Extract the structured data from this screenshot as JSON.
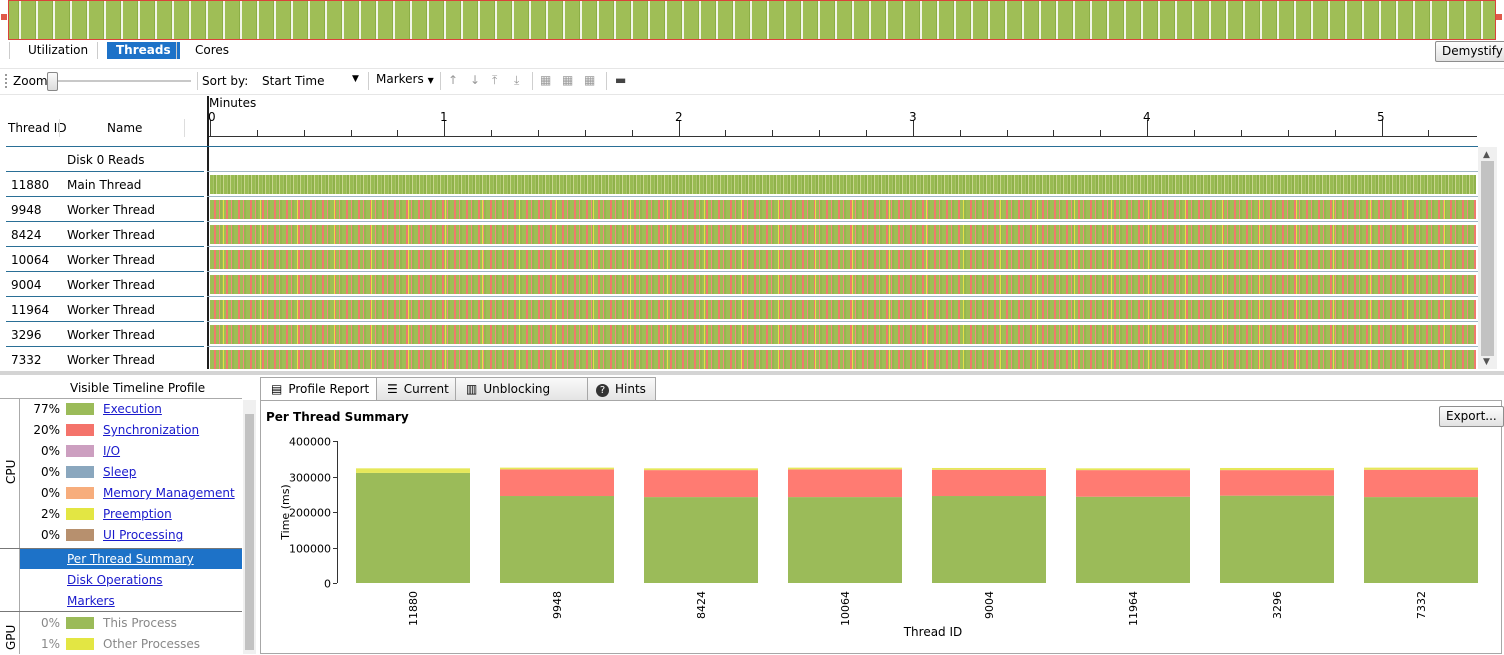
{
  "view_tabs": [
    {
      "label": "Utilization"
    },
    {
      "label": "Threads"
    },
    {
      "label": "Cores"
    }
  ],
  "demystify_label": "Demystify",
  "toolbar": {
    "zoom_label": "Zoom",
    "sort_by_label": "Sort by:",
    "sort_value": "Start Time",
    "markers_label": "Markers"
  },
  "timeline": {
    "minutes_label": "Minutes",
    "ticks": [
      "0",
      "1",
      "2",
      "3",
      "4",
      "5"
    ]
  },
  "columns": {
    "thread_id": "Thread ID",
    "name": "Name"
  },
  "threads": [
    {
      "id": "",
      "name": "Disk 0 Reads",
      "kind": "disk"
    },
    {
      "id": "11880",
      "name": "Main Thread",
      "kind": "main"
    },
    {
      "id": "9948",
      "name": "Worker Thread",
      "kind": "worker"
    },
    {
      "id": "8424",
      "name": "Worker Thread",
      "kind": "worker"
    },
    {
      "id": "10064",
      "name": "Worker Thread",
      "kind": "worker"
    },
    {
      "id": "9004",
      "name": "Worker Thread",
      "kind": "worker"
    },
    {
      "id": "11964",
      "name": "Worker Thread",
      "kind": "worker"
    },
    {
      "id": "3296",
      "name": "Worker Thread",
      "kind": "worker"
    },
    {
      "id": "7332",
      "name": "Worker Thread",
      "kind": "worker"
    }
  ],
  "profile": {
    "title": "Visible Timeline Profile",
    "cpu_label": "CPU",
    "gpu_label": "GPU",
    "cpu_items": [
      {
        "pct": "77%",
        "label": "Execution",
        "color": "#9bbb59"
      },
      {
        "pct": "20%",
        "label": "Synchronization",
        "color": "#f4736b"
      },
      {
        "pct": "0%",
        "label": "I/O",
        "color": "#cc9fc0"
      },
      {
        "pct": "0%",
        "label": "Sleep",
        "color": "#8aa7be"
      },
      {
        "pct": "0%",
        "label": "Memory Management",
        "color": "#f7ad7c"
      },
      {
        "pct": "2%",
        "label": "Preemption",
        "color": "#e3e643"
      },
      {
        "pct": "0%",
        "label": "UI Processing",
        "color": "#b7906e"
      }
    ],
    "reports": [
      "Per Thread Summary",
      "Disk Operations",
      "Markers"
    ],
    "gpu_items": [
      {
        "pct": "0%",
        "label": "This Process",
        "color": "#9bbb59"
      },
      {
        "pct": "1%",
        "label": "Other Processes",
        "color": "#e3e643"
      }
    ]
  },
  "report_tabs": [
    {
      "label": "Profile Report",
      "icon": "report-icon"
    },
    {
      "label": "Current",
      "icon": "list-icon"
    },
    {
      "label": "Unblocking Stack",
      "icon": "stack-icon"
    },
    {
      "label": "Hints",
      "icon": "help-icon"
    }
  ],
  "export_label": "Export...",
  "colors": {
    "execution": "#9bbb59",
    "synchronization": "#ff7b72",
    "preemption": "#e6e85a",
    "accent": "#1d72c8"
  },
  "chart_data": {
    "type": "bar",
    "stacked": true,
    "title": "Per Thread Summary",
    "xlabel": "Thread ID",
    "ylabel": "Time (ms)",
    "ylim": [
      0,
      400000
    ],
    "yticks": [
      "400000",
      "300000",
      "200000",
      "100000",
      "0"
    ],
    "categories": [
      "11880",
      "9948",
      "8424",
      "10064",
      "9004",
      "11964",
      "3296",
      "7332"
    ],
    "series": [
      {
        "key": "execution",
        "values": [
          310000,
          245000,
          242000,
          242000,
          245000,
          243000,
          246000,
          242000
        ]
      },
      {
        "key": "synchronization",
        "values": [
          0,
          75000,
          76000,
          78000,
          74000,
          75000,
          72000,
          77000
        ]
      },
      {
        "key": "preemption",
        "values": [
          13000,
          5000,
          5000,
          5000,
          5000,
          5000,
          6000,
          6000
        ]
      }
    ]
  }
}
